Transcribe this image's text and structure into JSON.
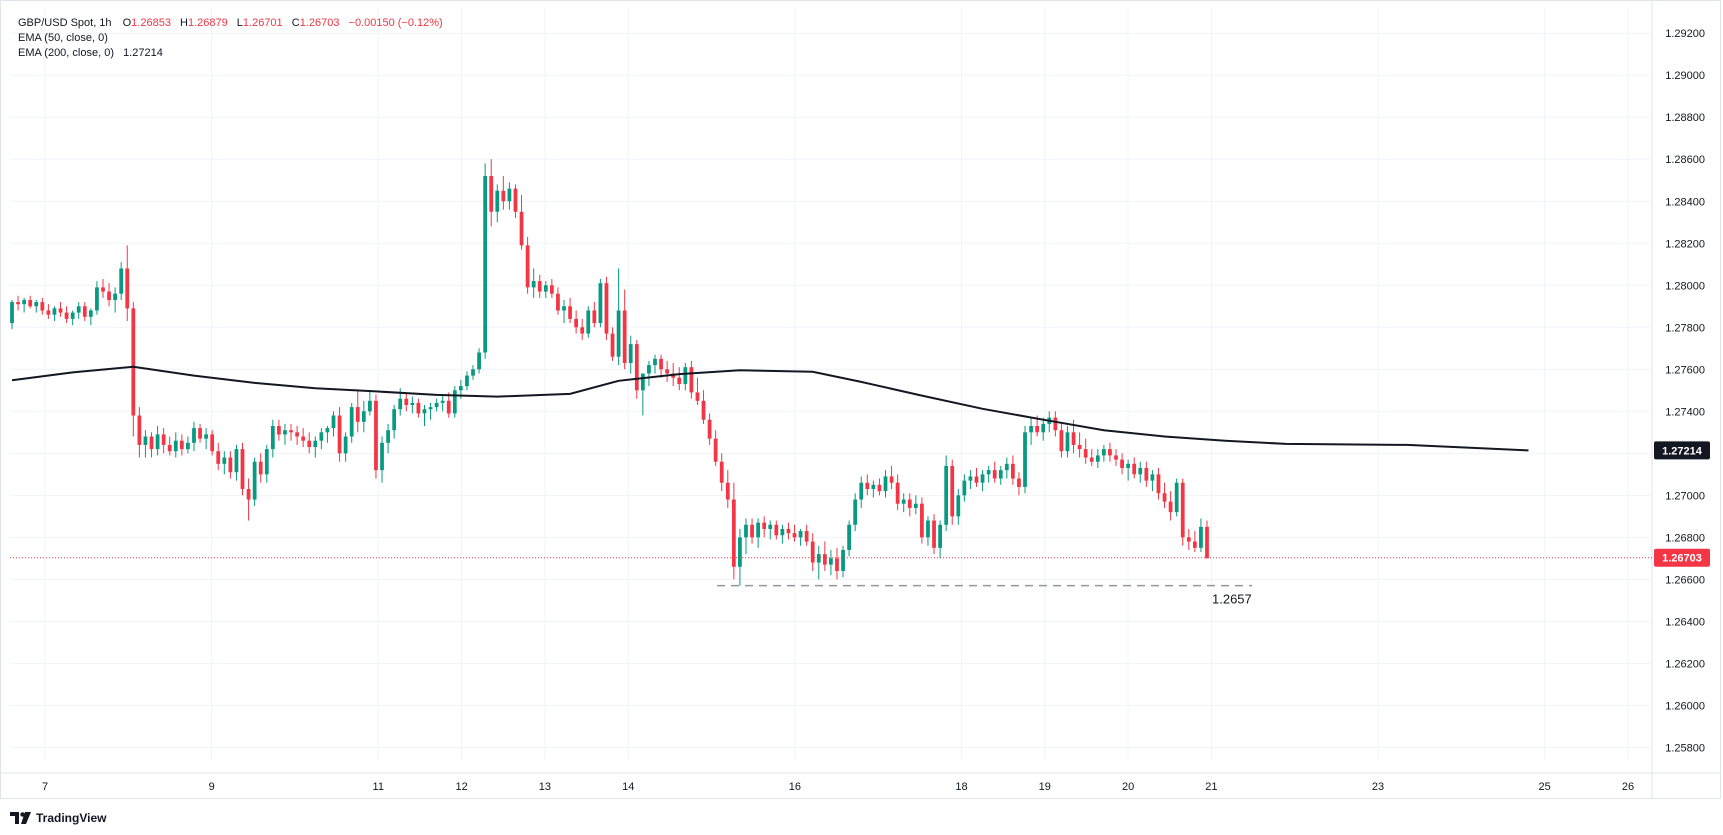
{
  "header": {
    "symbol_line": "GBP/USD Spot, 1h",
    "o_label": "O",
    "o_value": "1.26853",
    "h_label": "H",
    "h_value": "1.26879",
    "l_label": "L",
    "l_value": "1.26701",
    "c_label": "C",
    "c_value": "1.26703",
    "change": "−0.00150 (−0.12%)",
    "ema50_label": "EMA (50, close, 0)",
    "ema200_label": "EMA (200, close, 0)",
    "ema200_value": "1.27214"
  },
  "branding": {
    "text": "TradingView",
    "icon": "tradingview-logo-icon"
  },
  "colors": {
    "up": "#089981",
    "down": "#f23645",
    "ema": "#131722",
    "grid": "#f0f3fa",
    "text": "#131722"
  },
  "chart_data": {
    "type": "candlestick",
    "x_axis": {
      "tick_labels": [
        "7",
        "9",
        "11",
        "12",
        "13",
        "14",
        "16",
        "18",
        "19",
        "20",
        "21",
        "23",
        "25",
        "26"
      ]
    },
    "y_axis": {
      "range": [
        1.2574,
        1.2932
      ],
      "tick_labels": [
        "1.29200",
        "1.29000",
        "1.28800",
        "1.28600",
        "1.28400",
        "1.28200",
        "1.28000",
        "1.27800",
        "1.27600",
        "1.27400",
        "1.27200",
        "1.27000",
        "1.26800",
        "1.26600",
        "1.26400",
        "1.26200",
        "1.26000",
        "1.25800"
      ]
    },
    "price_badges": [
      {
        "label": "1.27214",
        "value": 1.27214,
        "color": "#131722"
      },
      {
        "label": "1.26703",
        "value": 1.26703,
        "color": "#f23645"
      }
    ],
    "last_price_line": 1.26703,
    "support_level": {
      "value": 1.2657,
      "label": "1.2657"
    },
    "ema200": [
      [
        0,
        1.27548
      ],
      [
        10,
        1.27585
      ],
      [
        20,
        1.27612
      ],
      [
        30,
        1.2757
      ],
      [
        40,
        1.27535
      ],
      [
        50,
        1.2751
      ],
      [
        60,
        1.27495
      ],
      [
        70,
        1.27478
      ],
      [
        80,
        1.2747
      ],
      [
        92,
        1.27483
      ],
      [
        100,
        1.27545
      ],
      [
        110,
        1.27577
      ],
      [
        120,
        1.27595
      ],
      [
        132,
        1.27588
      ],
      [
        140,
        1.2754
      ],
      [
        150,
        1.27475
      ],
      [
        160,
        1.27412
      ],
      [
        170,
        1.2736
      ],
      [
        180,
        1.2731
      ],
      [
        190,
        1.2728
      ],
      [
        200,
        1.2726
      ],
      [
        210,
        1.27245
      ],
      [
        230,
        1.2724
      ],
      [
        250,
        1.27214
      ]
    ],
    "candles": [
      [
        1.2782,
        1.2793,
        1.2779,
        1.2792
      ],
      [
        1.2792,
        1.2795,
        1.2788,
        1.2791
      ],
      [
        1.2791,
        1.2794,
        1.2787,
        1.2793
      ],
      [
        1.2793,
        1.2795,
        1.2789,
        1.279
      ],
      [
        1.279,
        1.2793,
        1.2787,
        1.2792
      ],
      [
        1.2792,
        1.2794,
        1.2786,
        1.2788
      ],
      [
        1.2788,
        1.2791,
        1.2784,
        1.2786
      ],
      [
        1.2786,
        1.279,
        1.2783,
        1.2789
      ],
      [
        1.2789,
        1.2792,
        1.2785,
        1.2787
      ],
      [
        1.2787,
        1.279,
        1.2782,
        1.2784
      ],
      [
        1.2784,
        1.2788,
        1.2781,
        1.2787
      ],
      [
        1.2787,
        1.2792,
        1.2784,
        1.279
      ],
      [
        1.279,
        1.2792,
        1.2783,
        1.2785
      ],
      [
        1.2785,
        1.2789,
        1.2781,
        1.2788
      ],
      [
        1.2788,
        1.2802,
        1.2786,
        1.2799
      ],
      [
        1.2799,
        1.2803,
        1.2794,
        1.2797
      ],
      [
        1.2797,
        1.2801,
        1.279,
        1.2793
      ],
      [
        1.2793,
        1.2799,
        1.2787,
        1.2796
      ],
      [
        1.2796,
        1.2811,
        1.2793,
        1.2808
      ],
      [
        1.2808,
        1.2819,
        1.2783,
        1.2789
      ],
      [
        1.2789,
        1.2792,
        1.2728,
        1.2738
      ],
      [
        1.2738,
        1.2742,
        1.2718,
        1.2724
      ],
      [
        1.2724,
        1.2731,
        1.2718,
        1.2728
      ],
      [
        1.2728,
        1.273,
        1.2718,
        1.2722
      ],
      [
        1.2722,
        1.2733,
        1.2719,
        1.2729
      ],
      [
        1.2729,
        1.2732,
        1.272,
        1.2724
      ],
      [
        1.2724,
        1.2728,
        1.2719,
        1.2721
      ],
      [
        1.2721,
        1.273,
        1.2718,
        1.2726
      ],
      [
        1.2726,
        1.2729,
        1.2719,
        1.2722
      ],
      [
        1.2722,
        1.2728,
        1.272,
        1.2725
      ],
      [
        1.2725,
        1.2735,
        1.2721,
        1.2732
      ],
      [
        1.2732,
        1.2734,
        1.2725,
        1.2727
      ],
      [
        1.2727,
        1.2732,
        1.2722,
        1.2729
      ],
      [
        1.2729,
        1.2731,
        1.2719,
        1.2721
      ],
      [
        1.2721,
        1.2725,
        1.2712,
        1.2715
      ],
      [
        1.2715,
        1.2721,
        1.271,
        1.2718
      ],
      [
        1.2718,
        1.2721,
        1.2708,
        1.2711
      ],
      [
        1.2711,
        1.2724,
        1.2707,
        1.2722
      ],
      [
        1.2722,
        1.2725,
        1.27,
        1.2703
      ],
      [
        1.2703,
        1.2708,
        1.2688,
        1.2698
      ],
      [
        1.2698,
        1.2718,
        1.2695,
        1.2716
      ],
      [
        1.2716,
        1.272,
        1.2706,
        1.271
      ],
      [
        1.271,
        1.2724,
        1.2706,
        1.2722
      ],
      [
        1.2722,
        1.2736,
        1.2718,
        1.2733
      ],
      [
        1.2733,
        1.2736,
        1.2726,
        1.2729
      ],
      [
        1.2729,
        1.2734,
        1.2724,
        1.2731
      ],
      [
        1.2731,
        1.2734,
        1.2726,
        1.273
      ],
      [
        1.273,
        1.2733,
        1.2724,
        1.2728
      ],
      [
        1.2728,
        1.2732,
        1.2723,
        1.2726
      ],
      [
        1.2726,
        1.273,
        1.272,
        1.2723
      ],
      [
        1.2723,
        1.2728,
        1.2718,
        1.2726
      ],
      [
        1.2726,
        1.2732,
        1.2722,
        1.273
      ],
      [
        1.273,
        1.2733,
        1.2725,
        1.2732
      ],
      [
        1.2732,
        1.274,
        1.2728,
        1.2738
      ],
      [
        1.2738,
        1.2742,
        1.2716,
        1.272
      ],
      [
        1.272,
        1.273,
        1.2716,
        1.2728
      ],
      [
        1.2728,
        1.2744,
        1.2725,
        1.2742
      ],
      [
        1.2742,
        1.275,
        1.273,
        1.2735
      ],
      [
        1.2735,
        1.2745,
        1.273,
        1.274
      ],
      [
        1.274,
        1.275,
        1.2738,
        1.2745
      ],
      [
        1.2745,
        1.2748,
        1.2708,
        1.2712
      ],
      [
        1.2712,
        1.2728,
        1.2706,
        1.2725
      ],
      [
        1.2725,
        1.2734,
        1.272,
        1.2731
      ],
      [
        1.2731,
        1.2743,
        1.2727,
        1.2741
      ],
      [
        1.2741,
        1.2751,
        1.2738,
        1.2746
      ],
      [
        1.2746,
        1.2749,
        1.274,
        1.2743
      ],
      [
        1.2743,
        1.2747,
        1.2739,
        1.2744
      ],
      [
        1.2744,
        1.2746,
        1.2737,
        1.2739
      ],
      [
        1.2739,
        1.2743,
        1.2733,
        1.2741
      ],
      [
        1.2741,
        1.2744,
        1.2736,
        1.2742
      ],
      [
        1.2742,
        1.2746,
        1.274,
        1.2744
      ],
      [
        1.2744,
        1.2748,
        1.274,
        1.2745
      ],
      [
        1.2745,
        1.2749,
        1.2737,
        1.2739
      ],
      [
        1.2739,
        1.2752,
        1.2737,
        1.275
      ],
      [
        1.275,
        1.2755,
        1.2746,
        1.2752
      ],
      [
        1.2752,
        1.2759,
        1.275,
        1.2757
      ],
      [
        1.2757,
        1.2762,
        1.2755,
        1.276
      ],
      [
        1.276,
        1.277,
        1.2758,
        1.2768
      ],
      [
        1.2768,
        1.2858,
        1.2765,
        1.2852
      ],
      [
        1.2852,
        1.286,
        1.2828,
        1.2835
      ],
      [
        1.2835,
        1.2848,
        1.283,
        1.2845
      ],
      [
        1.2845,
        1.2852,
        1.2836,
        1.284
      ],
      [
        1.284,
        1.2849,
        1.2836,
        1.2846
      ],
      [
        1.2846,
        1.2848,
        1.2832,
        1.2835
      ],
      [
        1.2835,
        1.2843,
        1.2817,
        1.2819
      ],
      [
        1.2819,
        1.2823,
        1.2796,
        1.2799
      ],
      [
        1.2799,
        1.2808,
        1.2794,
        1.2802
      ],
      [
        1.2802,
        1.2805,
        1.2794,
        1.2797
      ],
      [
        1.2797,
        1.2802,
        1.2794,
        1.28
      ],
      [
        1.28,
        1.2803,
        1.2794,
        1.2796
      ],
      [
        1.2796,
        1.2799,
        1.2786,
        1.2788
      ],
      [
        1.2788,
        1.2793,
        1.2782,
        1.279
      ],
      [
        1.279,
        1.2794,
        1.2782,
        1.2784
      ],
      [
        1.2784,
        1.2788,
        1.2777,
        1.278
      ],
      [
        1.278,
        1.2784,
        1.2774,
        1.2777
      ],
      [
        1.2777,
        1.279,
        1.2775,
        1.2788
      ],
      [
        1.2788,
        1.2792,
        1.278,
        1.2782
      ],
      [
        1.2782,
        1.2803,
        1.278,
        1.2801
      ],
      [
        1.2801,
        1.2804,
        1.2774,
        1.2777
      ],
      [
        1.2777,
        1.278,
        1.2764,
        1.2766
      ],
      [
        1.2766,
        1.2808,
        1.2762,
        1.2788
      ],
      [
        1.2788,
        1.2798,
        1.276,
        1.2763
      ],
      [
        1.2763,
        1.2776,
        1.2758,
        1.2772
      ],
      [
        1.2772,
        1.2774,
        1.2746,
        1.275
      ],
      [
        1.275,
        1.2758,
        1.2738,
        1.2758
      ],
      [
        1.2758,
        1.2764,
        1.2752,
        1.2762
      ],
      [
        1.2762,
        1.2767,
        1.2758,
        1.2765
      ],
      [
        1.2765,
        1.2767,
        1.2756,
        1.276
      ],
      [
        1.276,
        1.2764,
        1.2754,
        1.2758
      ],
      [
        1.2758,
        1.2763,
        1.2752,
        1.2756
      ],
      [
        1.2756,
        1.2761,
        1.275,
        1.2753
      ],
      [
        1.2753,
        1.2763,
        1.275,
        1.2761
      ],
      [
        1.2761,
        1.2764,
        1.2746,
        1.2749
      ],
      [
        1.2749,
        1.2756,
        1.2743,
        1.2745
      ],
      [
        1.2745,
        1.275,
        1.2734,
        1.2736
      ],
      [
        1.2736,
        1.2739,
        1.2724,
        1.2727
      ],
      [
        1.2727,
        1.2731,
        1.2714,
        1.2716
      ],
      [
        1.2716,
        1.272,
        1.2702,
        1.2706
      ],
      [
        1.2706,
        1.2712,
        1.2694,
        1.2698
      ],
      [
        1.2698,
        1.2706,
        1.266,
        1.2666
      ],
      [
        1.2666,
        1.2684,
        1.2657,
        1.268
      ],
      [
        1.268,
        1.2689,
        1.2672,
        1.2686
      ],
      [
        1.2686,
        1.2689,
        1.2677,
        1.268
      ],
      [
        1.268,
        1.2689,
        1.2675,
        1.2687
      ],
      [
        1.2687,
        1.269,
        1.268,
        1.2684
      ],
      [
        1.2684,
        1.2688,
        1.2679,
        1.2686
      ],
      [
        1.2686,
        1.2688,
        1.2679,
        1.2681
      ],
      [
        1.2681,
        1.2686,
        1.2677,
        1.2684
      ],
      [
        1.2684,
        1.2687,
        1.2679,
        1.2682
      ],
      [
        1.2682,
        1.2686,
        1.2678,
        1.268
      ],
      [
        1.268,
        1.2684,
        1.2676,
        1.2683
      ],
      [
        1.2683,
        1.2686,
        1.2676,
        1.2678
      ],
      [
        1.2678,
        1.2682,
        1.2664,
        1.2668
      ],
      [
        1.2668,
        1.2676,
        1.266,
        1.2672
      ],
      [
        1.2672,
        1.2678,
        1.2664,
        1.2667
      ],
      [
        1.2667,
        1.2674,
        1.2662,
        1.267
      ],
      [
        1.267,
        1.2675,
        1.266,
        1.2664
      ],
      [
        1.2664,
        1.2676,
        1.2661,
        1.2674
      ],
      [
        1.2674,
        1.2688,
        1.2671,
        1.2686
      ],
      [
        1.2686,
        1.2701,
        1.2683,
        1.2698
      ],
      [
        1.2698,
        1.2709,
        1.2694,
        1.2706
      ],
      [
        1.2706,
        1.271,
        1.27,
        1.2703
      ],
      [
        1.2703,
        1.2707,
        1.2699,
        1.2705
      ],
      [
        1.2705,
        1.2708,
        1.27,
        1.2702
      ],
      [
        1.2702,
        1.2712,
        1.2699,
        1.2709
      ],
      [
        1.2709,
        1.2714,
        1.2703,
        1.2706
      ],
      [
        1.2706,
        1.271,
        1.2693,
        1.2696
      ],
      [
        1.2696,
        1.2701,
        1.2692,
        1.2698
      ],
      [
        1.2698,
        1.2701,
        1.269,
        1.2694
      ],
      [
        1.2694,
        1.27,
        1.2691,
        1.2696
      ],
      [
        1.2696,
        1.2699,
        1.2677,
        1.268
      ],
      [
        1.268,
        1.269,
        1.2676,
        1.2688
      ],
      [
        1.2688,
        1.2691,
        1.2672,
        1.2675
      ],
      [
        1.2675,
        1.2688,
        1.267,
        1.2686
      ],
      [
        1.2686,
        1.2719,
        1.2683,
        1.2714
      ],
      [
        1.2714,
        1.2717,
        1.2686,
        1.269
      ],
      [
        1.269,
        1.2703,
        1.2686,
        1.27
      ],
      [
        1.27,
        1.271,
        1.2697,
        1.2707
      ],
      [
        1.2707,
        1.2712,
        1.2703,
        1.2709
      ],
      [
        1.2709,
        1.2713,
        1.2704,
        1.2706
      ],
      [
        1.2706,
        1.2712,
        1.2702,
        1.271
      ],
      [
        1.271,
        1.2714,
        1.2706,
        1.2712
      ],
      [
        1.2712,
        1.2716,
        1.2706,
        1.2708
      ],
      [
        1.2708,
        1.2714,
        1.2705,
        1.2712
      ],
      [
        1.2712,
        1.2718,
        1.2708,
        1.2715
      ],
      [
        1.2715,
        1.2719,
        1.2705,
        1.2708
      ],
      [
        1.2708,
        1.2711,
        1.27,
        1.2704
      ],
      [
        1.2704,
        1.2733,
        1.2701,
        1.273
      ],
      [
        1.273,
        1.2737,
        1.2724,
        1.2733
      ],
      [
        1.2733,
        1.2738,
        1.2728,
        1.273
      ],
      [
        1.273,
        1.2737,
        1.2726,
        1.2734
      ],
      [
        1.2734,
        1.274,
        1.273,
        1.2737
      ],
      [
        1.2737,
        1.274,
        1.2728,
        1.2731
      ],
      [
        1.2731,
        1.2735,
        1.2718,
        1.2721
      ],
      [
        1.2721,
        1.2733,
        1.2718,
        1.273
      ],
      [
        1.273,
        1.2736,
        1.272,
        1.2724
      ],
      [
        1.2724,
        1.273,
        1.2718,
        1.2722
      ],
      [
        1.2722,
        1.2727,
        1.2715,
        1.2718
      ],
      [
        1.2718,
        1.2722,
        1.2714,
        1.2716
      ],
      [
        1.2716,
        1.2722,
        1.2713,
        1.2719
      ],
      [
        1.2719,
        1.2724,
        1.2716,
        1.2722
      ],
      [
        1.2722,
        1.2725,
        1.2716,
        1.2719
      ],
      [
        1.2719,
        1.2722,
        1.2714,
        1.2717
      ],
      [
        1.2717,
        1.272,
        1.271,
        1.2713
      ],
      [
        1.2713,
        1.2717,
        1.2707,
        1.2715
      ],
      [
        1.2715,
        1.2718,
        1.2708,
        1.271
      ],
      [
        1.271,
        1.2716,
        1.2706,
        1.2713
      ],
      [
        1.2713,
        1.2716,
        1.2704,
        1.2707
      ],
      [
        1.2707,
        1.2712,
        1.2702,
        1.271
      ],
      [
        1.271,
        1.2713,
        1.2698,
        1.2701
      ],
      [
        1.2701,
        1.2706,
        1.2694,
        1.2697
      ],
      [
        1.2697,
        1.2702,
        1.2688,
        1.2692
      ],
      [
        1.2692,
        1.2708,
        1.269,
        1.2706
      ],
      [
        1.2706,
        1.2708,
        1.2676,
        1.268
      ],
      [
        1.268,
        1.2684,
        1.2674,
        1.2678
      ],
      [
        1.2678,
        1.2683,
        1.2673,
        1.2675
      ],
      [
        1.2675,
        1.2689,
        1.2673,
        1.2685
      ],
      [
        1.2685,
        1.2688,
        1.267,
        1.267
      ]
    ]
  }
}
